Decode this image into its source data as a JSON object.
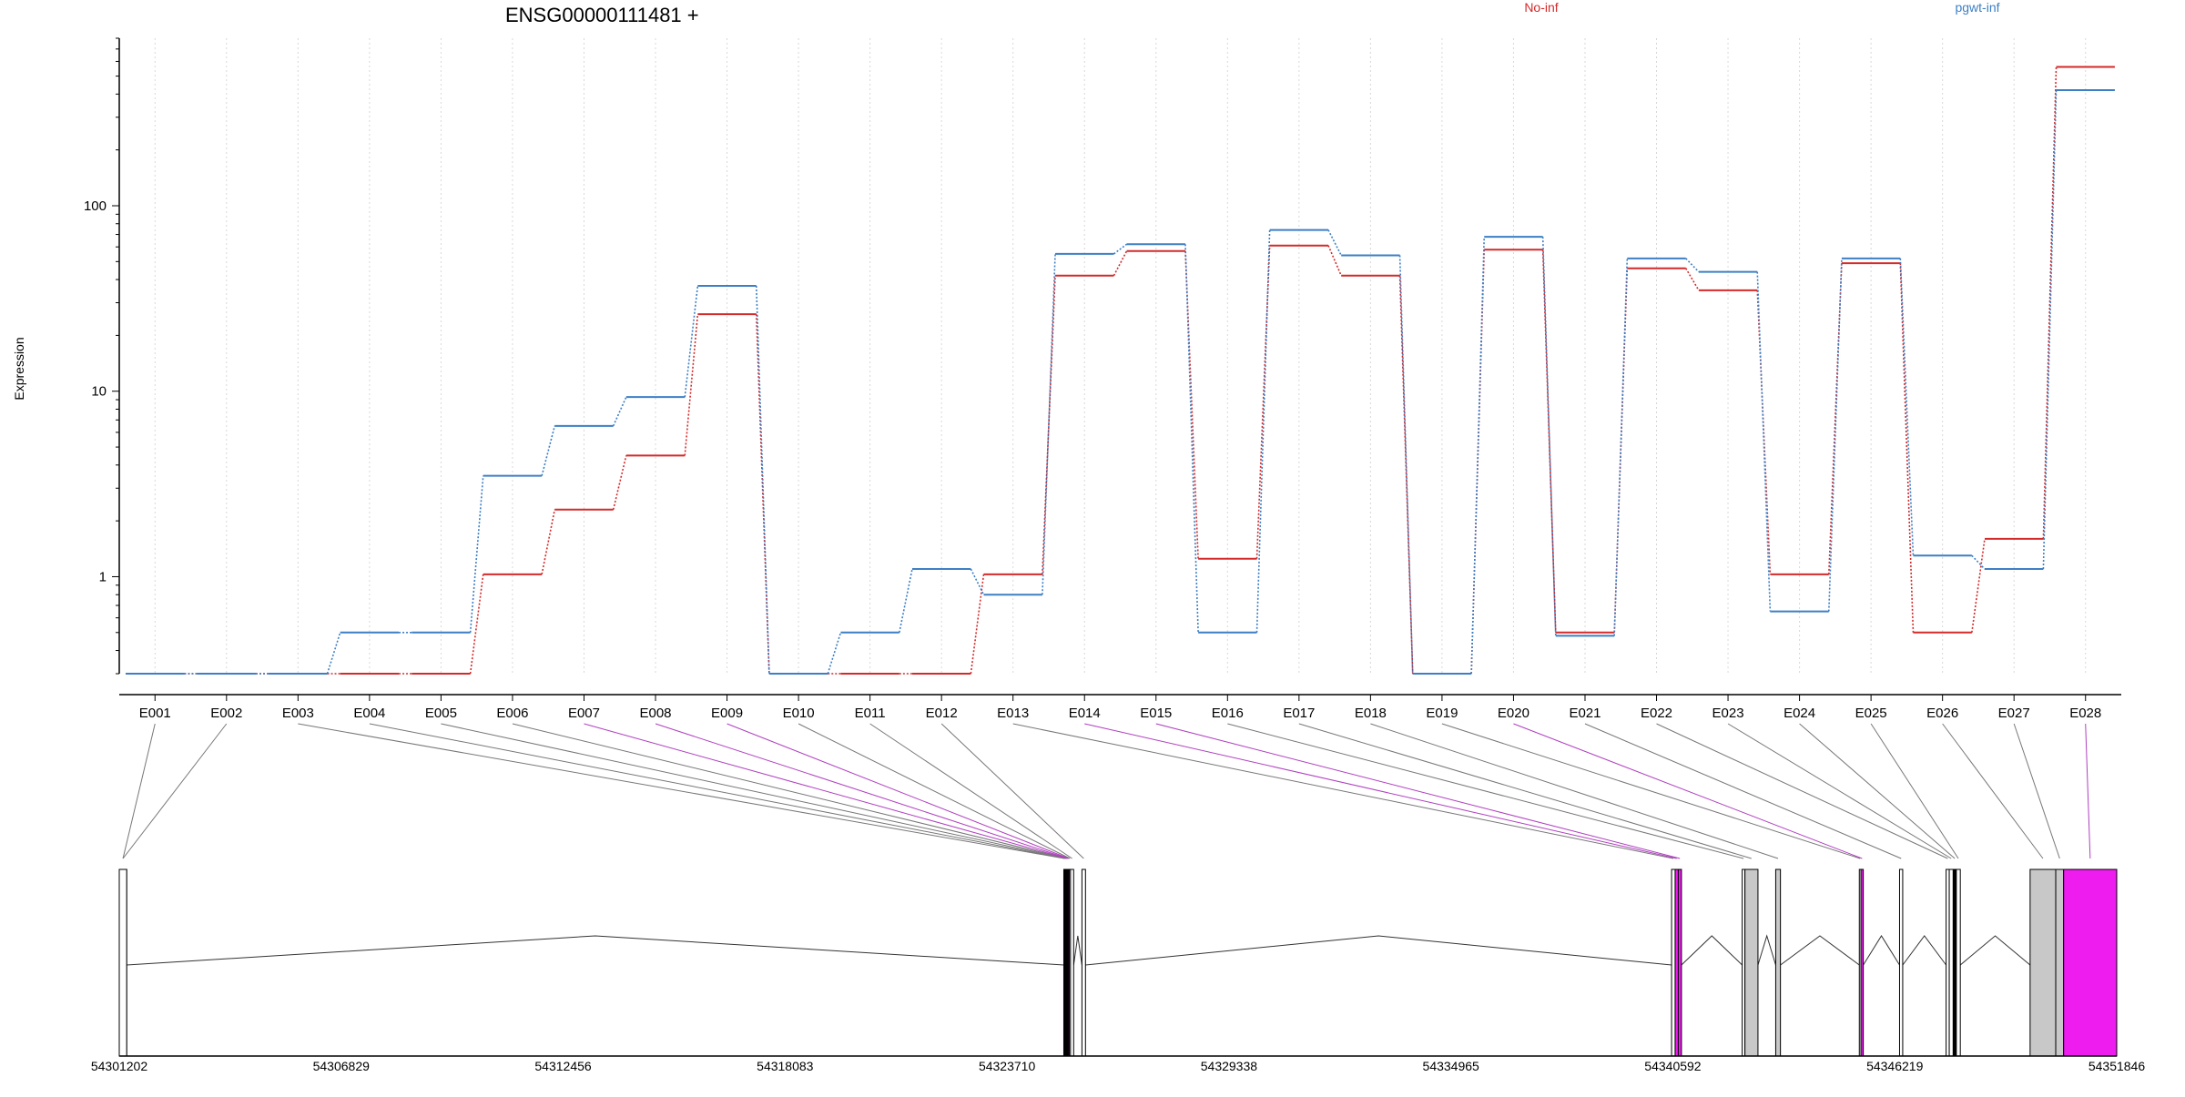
{
  "chart_data": {
    "type": "line",
    "title": "ENSG00000111481 +",
    "ylabel": "Expression",
    "y_scale": "log",
    "ylim": [
      0.3,
      800
    ],
    "y_ticks": [
      1,
      10,
      100
    ],
    "y_tick_labels": [
      "1",
      "10",
      "100"
    ],
    "grid": "vertical dotted",
    "legend_placement": "top",
    "categories": [
      "E001",
      "E002",
      "E003",
      "E004",
      "E005",
      "E006",
      "E007",
      "E008",
      "E009",
      "E010",
      "E011",
      "E012",
      "E013",
      "E014",
      "E015",
      "E016",
      "E017",
      "E018",
      "E019",
      "E020",
      "E021",
      "E022",
      "E023",
      "E024",
      "E025",
      "E026",
      "E027",
      "E028"
    ],
    "series": [
      {
        "name": "No-inf",
        "color": "#d42a2a",
        "values": [
          0.3,
          0.3,
          0.3,
          0.3,
          0.3,
          1.03,
          2.3,
          4.5,
          26,
          0.3,
          0.3,
          0.3,
          1.03,
          42,
          57,
          1.25,
          61,
          42,
          0.3,
          58,
          0.5,
          46,
          35,
          1.03,
          49,
          0.5,
          1.6,
          560
        ]
      },
      {
        "name": "pgwt-inf",
        "color": "#3d7fc4",
        "values": [
          0.3,
          0.3,
          0.3,
          0.5,
          0.5,
          3.5,
          6.5,
          9.3,
          37,
          0.3,
          0.5,
          1.1,
          0.8,
          55,
          62,
          0.5,
          74,
          54,
          0.3,
          68,
          0.48,
          52,
          44,
          0.65,
          52,
          1.3,
          1.1,
          420
        ]
      }
    ],
    "gene_model": {
      "coordinate_range": [
        54301202,
        54351846
      ],
      "coordinate_ticks": [
        54301202,
        54306829,
        54312456,
        54318083,
        54323710,
        54329338,
        54334965,
        54340592,
        54346219,
        54351846
      ],
      "coordinate_tick_labels": [
        "54301202",
        "54306829",
        "54312456",
        "54318083",
        "54323710",
        "54329338",
        "54334965",
        "54340592",
        "54346219",
        "54351846"
      ],
      "exons": [
        {
          "id": "E001",
          "start": 54301202,
          "end": 54301390,
          "fill": "#ffffff",
          "mapped": false
        },
        {
          "id": "E002",
          "start": 54301202,
          "end": 54301390,
          "fill": "#ffffff",
          "mapped": false
        },
        {
          "id": "E003",
          "start": 54325150,
          "end": 54325175,
          "fill": "#000000",
          "mapped": false
        },
        {
          "id": "E004",
          "start": 54325175,
          "end": 54325195,
          "fill": "#000000",
          "mapped": false
        },
        {
          "id": "E005",
          "start": 54325195,
          "end": 54325210,
          "fill": "#000000",
          "mapped": false
        },
        {
          "id": "E006",
          "start": 54325210,
          "end": 54325230,
          "fill": "#000000",
          "mapped": false
        },
        {
          "id": "E007",
          "start": 54325230,
          "end": 54325245,
          "fill": "#d60fd6",
          "mapped": true
        },
        {
          "id": "E008",
          "start": 54325245,
          "end": 54325265,
          "fill": "#d60fd6",
          "mapped": true
        },
        {
          "id": "E009",
          "start": 54325265,
          "end": 54325290,
          "fill": "#d60fd6",
          "mapped": true
        },
        {
          "id": "E010",
          "start": 54325290,
          "end": 54325320,
          "fill": "#ffffff",
          "mapped": false
        },
        {
          "id": "E011",
          "start": 54325320,
          "end": 54325400,
          "fill": "#ffffff",
          "mapped": false
        },
        {
          "id": "E012",
          "start": 54325610,
          "end": 54325700,
          "fill": "#ffffff",
          "mapped": false
        },
        {
          "id": "E013",
          "start": 54340560,
          "end": 54340650,
          "fill": "#ffffff",
          "mapped": false
        },
        {
          "id": "E014",
          "start": 54340650,
          "end": 54340730,
          "fill": "#ef1cef",
          "mapped": true
        },
        {
          "id": "E015",
          "start": 54340730,
          "end": 54340810,
          "fill": "#ef1cef",
          "mapped": true
        },
        {
          "id": "E016",
          "start": 54342350,
          "end": 54342420,
          "fill": "#ffffff",
          "mapped": false
        },
        {
          "id": "E017",
          "start": 54342420,
          "end": 54342750,
          "fill": "#c8c8c8",
          "mapped": false
        },
        {
          "id": "E018",
          "start": 54343200,
          "end": 54343320,
          "fill": "#c8c8c8",
          "mapped": false
        },
        {
          "id": "E019",
          "start": 54345320,
          "end": 54345360,
          "fill": "#ffffff",
          "mapped": false
        },
        {
          "id": "E020",
          "start": 54345360,
          "end": 54345420,
          "fill": "#ef1cef",
          "mapped": true
        },
        {
          "id": "E021",
          "start": 54346340,
          "end": 54346420,
          "fill": "#ffffff",
          "mapped": false
        },
        {
          "id": "E022",
          "start": 54347520,
          "end": 54347600,
          "fill": "#ffffff",
          "mapped": false
        },
        {
          "id": "E023",
          "start": 54347600,
          "end": 54347700,
          "fill": "#ffffff",
          "mapped": false
        },
        {
          "id": "E024",
          "start": 54347700,
          "end": 54347780,
          "fill": "#000000",
          "mapped": false
        },
        {
          "id": "E025",
          "start": 54347780,
          "end": 54347880,
          "fill": "#ffffff",
          "mapped": false
        },
        {
          "id": "E026",
          "start": 54349650,
          "end": 54350300,
          "fill": "#c8c8c8",
          "mapped": false
        },
        {
          "id": "E027",
          "start": 54350300,
          "end": 54350500,
          "fill": "#c8c8c8",
          "mapped": false
        },
        {
          "id": "E028",
          "start": 54350500,
          "end": 54351846,
          "fill": "#ef1cef",
          "mapped": true
        }
      ]
    }
  }
}
